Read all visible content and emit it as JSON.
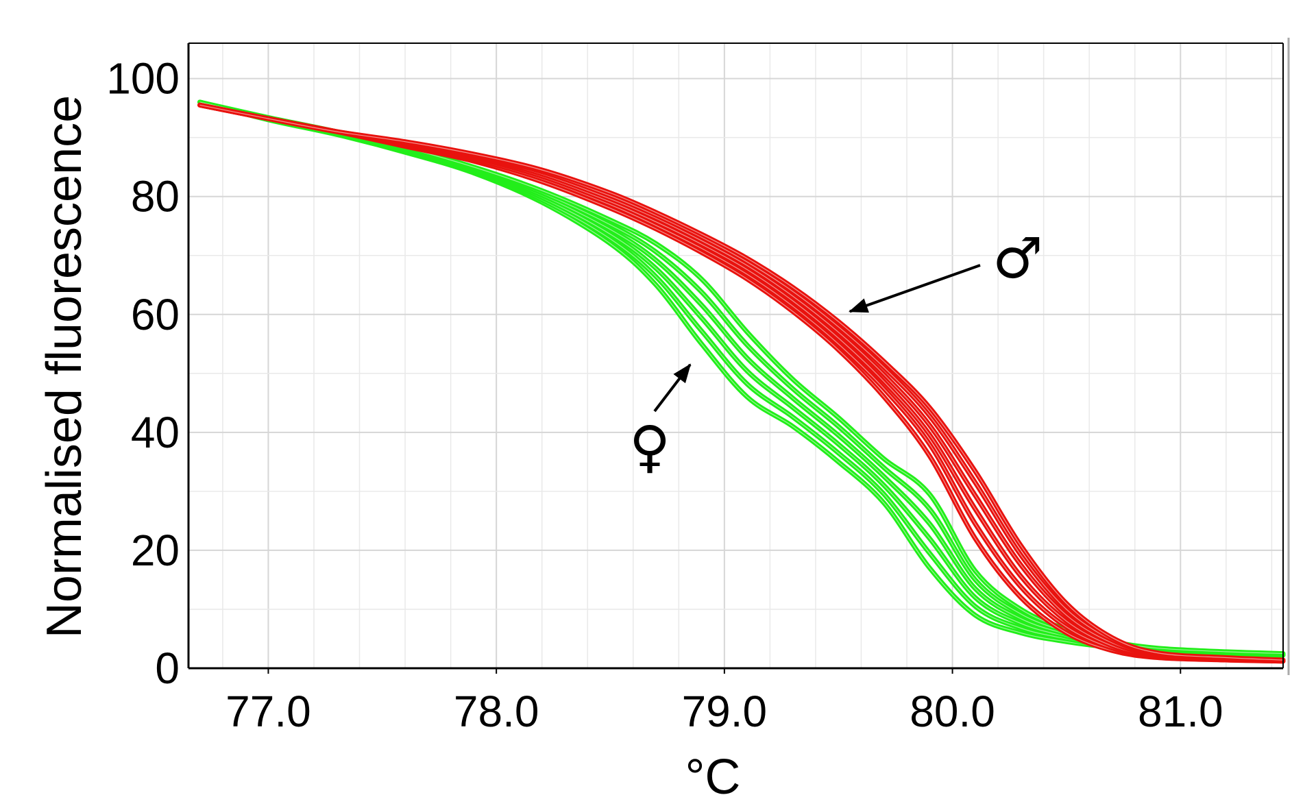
{
  "chart_data": {
    "type": "line",
    "title": "",
    "xlabel": "°C",
    "ylabel": "Normalised fluorescence",
    "xlim": [
      76.65,
      81.45
    ],
    "ylim": [
      0,
      106
    ],
    "xticks": [
      77.0,
      78.0,
      79.0,
      80.0,
      81.0
    ],
    "xtick_labels": [
      "77.0",
      "78.0",
      "79.0",
      "80.0",
      "81.0"
    ],
    "yticks": [
      0,
      20,
      40,
      60,
      80,
      100
    ],
    "ytick_labels": [
      "0",
      "20",
      "40",
      "60",
      "80",
      "100"
    ],
    "grid": true,
    "x": [
      76.7,
      77.0,
      77.3,
      77.6,
      77.9,
      78.2,
      78.5,
      78.7,
      78.9,
      79.1,
      79.3,
      79.5,
      79.7,
      79.9,
      80.1,
      80.3,
      80.5,
      80.7,
      80.9,
      81.2,
      81.45
    ],
    "series": [
      {
        "color": "#e8120e",
        "curves": [
          [
            95.5,
            93.2,
            91.0,
            88.5,
            86.0,
            82.5,
            78.0,
            74.5,
            70.5,
            66.0,
            60.5,
            54.0,
            46.0,
            36.0,
            22.0,
            12.0,
            6.0,
            3.0,
            1.8,
            1.4,
            1.2
          ],
          [
            95.5,
            93.2,
            91.0,
            88.7,
            86.3,
            83.0,
            78.6,
            75.1,
            71.2,
            66.8,
            61.4,
            55.0,
            47.4,
            38.0,
            24.5,
            13.8,
            7.0,
            3.4,
            2.0,
            1.4,
            1.2
          ],
          [
            95.5,
            93.2,
            91.0,
            88.9,
            86.6,
            83.4,
            79.1,
            75.7,
            71.9,
            67.6,
            62.3,
            56.0,
            48.6,
            39.6,
            27.0,
            15.6,
            8.0,
            3.8,
            2.1,
            1.5,
            1.3
          ],
          [
            95.5,
            93.2,
            91.0,
            89.0,
            86.8,
            83.8,
            79.6,
            76.3,
            72.5,
            68.3,
            63.1,
            57.0,
            49.8,
            41.2,
            29.3,
            17.5,
            9.0,
            4.3,
            2.3,
            1.6,
            1.3
          ],
          [
            95.5,
            93.2,
            91.0,
            89.2,
            87.0,
            84.2,
            80.1,
            76.8,
            73.1,
            68.9,
            63.9,
            57.9,
            51.0,
            42.8,
            31.5,
            19.2,
            10.0,
            4.8,
            2.5,
            1.7,
            1.4
          ],
          [
            95.5,
            93.2,
            91.0,
            89.3,
            87.2,
            84.5,
            80.6,
            77.3,
            73.6,
            69.5,
            64.6,
            58.8,
            52.0,
            44.2,
            33.4,
            20.8,
            11.0,
            5.2,
            2.6,
            1.8,
            1.4
          ]
        ]
      },
      {
        "color": "#22ee1a",
        "curves": [
          [
            96.0,
            93.0,
            90.5,
            87.5,
            84.0,
            79.0,
            72.0,
            65.0,
            55.0,
            46.0,
            41.0,
            35.0,
            28.0,
            17.0,
            9.0,
            6.0,
            4.5,
            3.5,
            2.8,
            2.4,
            2.2
          ],
          [
            96.0,
            93.1,
            90.6,
            87.7,
            84.2,
            79.4,
            72.8,
            66.4,
            57.2,
            48.2,
            42.6,
            36.5,
            29.5,
            19.5,
            10.5,
            6.8,
            5.0,
            3.7,
            3.0,
            2.5,
            2.3
          ],
          [
            96.0,
            93.2,
            90.7,
            87.8,
            84.4,
            79.8,
            73.6,
            67.8,
            59.4,
            50.4,
            44.2,
            38.0,
            31.0,
            22.0,
            12.0,
            7.6,
            5.4,
            3.9,
            3.1,
            2.6,
            2.3
          ],
          [
            96.0,
            93.2,
            90.8,
            88.0,
            84.6,
            80.2,
            74.4,
            69.2,
            61.6,
            52.6,
            45.8,
            39.5,
            32.5,
            24.5,
            13.5,
            8.4,
            5.8,
            4.1,
            3.2,
            2.6,
            2.4
          ],
          [
            96.0,
            93.3,
            90.9,
            88.1,
            84.8,
            80.6,
            75.2,
            70.6,
            63.8,
            54.8,
            47.4,
            41.0,
            34.0,
            27.0,
            15.0,
            9.2,
            6.2,
            4.3,
            3.3,
            2.7,
            2.4
          ],
          [
            96.0,
            93.4,
            91.0,
            88.3,
            85.0,
            81.0,
            76.0,
            72.0,
            66.0,
            57.0,
            49.0,
            42.5,
            35.5,
            29.5,
            16.5,
            10.0,
            6.6,
            4.5,
            3.4,
            2.8,
            2.5
          ]
        ]
      }
    ],
    "annotations": [
      {
        "text": "♂",
        "meaning": "male",
        "arrow_target": [
          79.55,
          60.5
        ]
      },
      {
        "text": "♀",
        "meaning": "female",
        "arrow_target": [
          78.85,
          51.5
        ]
      }
    ]
  }
}
